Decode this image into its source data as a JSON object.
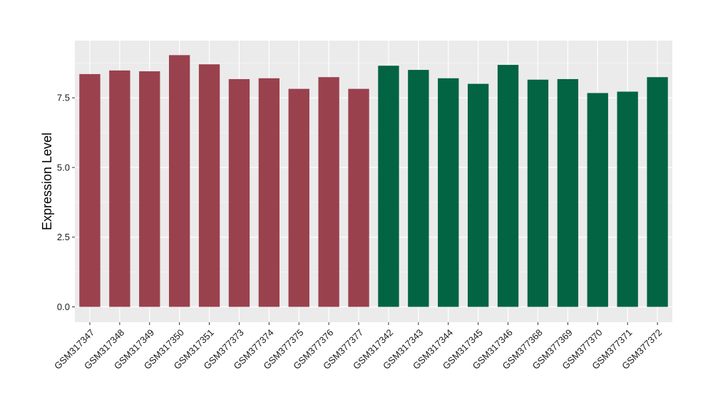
{
  "chart_data": {
    "type": "bar",
    "title": "",
    "xlabel": "",
    "ylabel": "Expression Level",
    "ylim": [
      -0.55,
      9.55
    ],
    "yticks": [
      0.0,
      2.5,
      5.0,
      7.5
    ],
    "ytick_labels": [
      "0.0",
      "2.5",
      "5.0",
      "7.5"
    ],
    "grid": true,
    "legend": "none",
    "categories": [
      "GSM317347",
      "GSM317348",
      "GSM317349",
      "GSM317350",
      "GSM317351",
      "GSM377373",
      "GSM377374",
      "GSM377375",
      "GSM377376",
      "GSM377377",
      "GSM317342",
      "GSM317343",
      "GSM317344",
      "GSM317345",
      "GSM317346",
      "GSM377368",
      "GSM377369",
      "GSM377370",
      "GSM377371",
      "GSM377372"
    ],
    "values": [
      8.35,
      8.48,
      8.45,
      9.03,
      8.7,
      8.17,
      8.2,
      7.82,
      8.24,
      7.82,
      8.65,
      8.5,
      8.2,
      8.0,
      8.68,
      8.15,
      8.17,
      7.67,
      7.72,
      8.24
    ],
    "groups": [
      1,
      1,
      1,
      1,
      1,
      1,
      1,
      1,
      1,
      1,
      2,
      2,
      2,
      2,
      2,
      2,
      2,
      2,
      2,
      2
    ],
    "group_colors": [
      "#9a414e",
      "#026443"
    ],
    "panel_color": "#ebebeb"
  }
}
